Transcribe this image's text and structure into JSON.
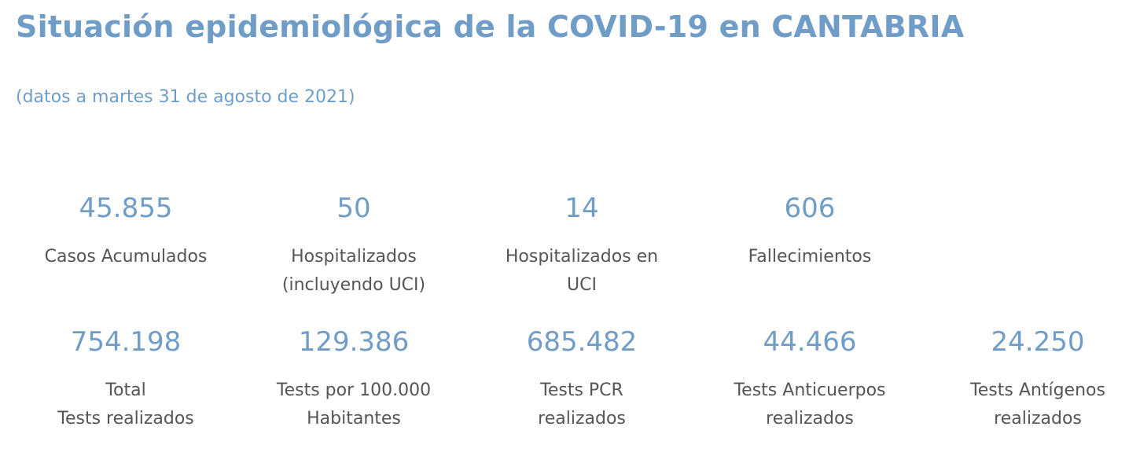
{
  "header": {
    "title": "Situación epidemiológica de la COVID-19 en CANTABRIA",
    "subtitle": "(datos a martes 31 de agosto de 2021)"
  },
  "stats_row1": [
    {
      "value": "45.855",
      "label": "Casos Acumulados"
    },
    {
      "value": "50",
      "label": "Hospitalizados\n(incluyendo UCI)"
    },
    {
      "value": "14",
      "label": "Hospitalizados en\nUCI"
    },
    {
      "value": "606",
      "label": "Fallecimientos"
    }
  ],
  "stats_row2": [
    {
      "value": "754.198",
      "label": "Total\nTests realizados"
    },
    {
      "value": "129.386",
      "label": "Tests por 100.000\nHabitantes"
    },
    {
      "value": "685.482",
      "label": " Tests PCR\nrealizados"
    },
    {
      "value": "44.466",
      "label": "Tests Anticuerpos\nrealizados"
    },
    {
      "value": "24.250",
      "label": "Tests Antígenos\nrealizados"
    }
  ],
  "colors": {
    "accent": "#6f9dc8",
    "text": "#555555",
    "background": "#ffffff"
  }
}
